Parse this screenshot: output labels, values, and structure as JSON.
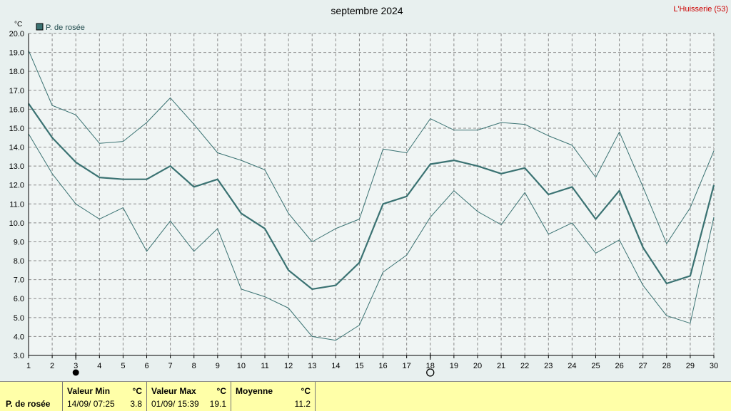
{
  "header": {
    "title": "septembre 2024",
    "station": "L'Huisserie (53)",
    "unit": "°C",
    "legend": "P. de rosée"
  },
  "chart_data": {
    "type": "line",
    "title": "septembre 2024",
    "ylabel": "°C",
    "xlabel": "",
    "ylim": [
      3.0,
      20.0
    ],
    "xlim": [
      1,
      30
    ],
    "x": [
      1,
      2,
      3,
      4,
      5,
      6,
      7,
      8,
      9,
      10,
      11,
      12,
      13,
      14,
      15,
      16,
      17,
      18,
      19,
      20,
      21,
      22,
      23,
      24,
      25,
      26,
      27,
      28,
      29,
      30
    ],
    "y_ticks": [
      "3.0",
      "4.0",
      "5.0",
      "6.0",
      "7.0",
      "8.0",
      "9.0",
      "10.0",
      "11.0",
      "12.0",
      "13.0",
      "14.0",
      "15.0",
      "16.0",
      "17.0",
      "18.0",
      "19.0",
      "20.0"
    ],
    "grid": true,
    "legend_position": "top-left",
    "series": [
      {
        "name": "P. de rosée",
        "role": "mean",
        "color": "#3a7272",
        "values": [
          16.3,
          14.5,
          13.2,
          12.4,
          12.3,
          12.3,
          13.0,
          11.9,
          12.3,
          10.5,
          9.7,
          7.5,
          6.5,
          6.7,
          7.9,
          11.0,
          11.4,
          13.1,
          13.3,
          13.0,
          12.6,
          12.9,
          11.5,
          11.9,
          10.2,
          11.7,
          8.7,
          6.8,
          7.2,
          12.0
        ]
      },
      {
        "role": "max",
        "color": "#3a7272",
        "values": [
          19.1,
          16.2,
          15.7,
          14.2,
          14.3,
          15.3,
          16.6,
          15.2,
          13.7,
          13.3,
          12.8,
          10.5,
          9.0,
          9.7,
          10.2,
          13.9,
          13.7,
          15.5,
          14.9,
          14.9,
          15.3,
          15.2,
          14.6,
          14.1,
          12.4,
          14.8,
          11.9,
          8.9,
          10.8,
          13.8
        ]
      },
      {
        "role": "min",
        "color": "#3a7272",
        "values": [
          14.7,
          12.6,
          11.0,
          10.2,
          10.8,
          8.5,
          10.1,
          8.5,
          9.7,
          6.5,
          6.1,
          5.5,
          4.0,
          3.8,
          4.6,
          7.4,
          8.3,
          10.3,
          11.7,
          10.6,
          9.9,
          11.6,
          9.4,
          10.0,
          8.4,
          9.1,
          6.7,
          5.1,
          4.7,
          10.3
        ]
      }
    ],
    "markers": [
      {
        "day": 3,
        "symbol": "new-moon"
      },
      {
        "day": 18,
        "symbol": "full-moon"
      }
    ]
  },
  "stats": {
    "row_label": "P. de rosée",
    "min_header": "Valeur Min",
    "min_unit": "°C",
    "min_date": "14/09/  07:25",
    "min_value": "3.8",
    "max_header": "Valeur Max",
    "max_unit": "°C",
    "max_date": "01/09/  15:39",
    "max_value": "19.1",
    "avg_header": "Moyenne",
    "avg_unit": "°C",
    "avg_value": "11.2"
  }
}
